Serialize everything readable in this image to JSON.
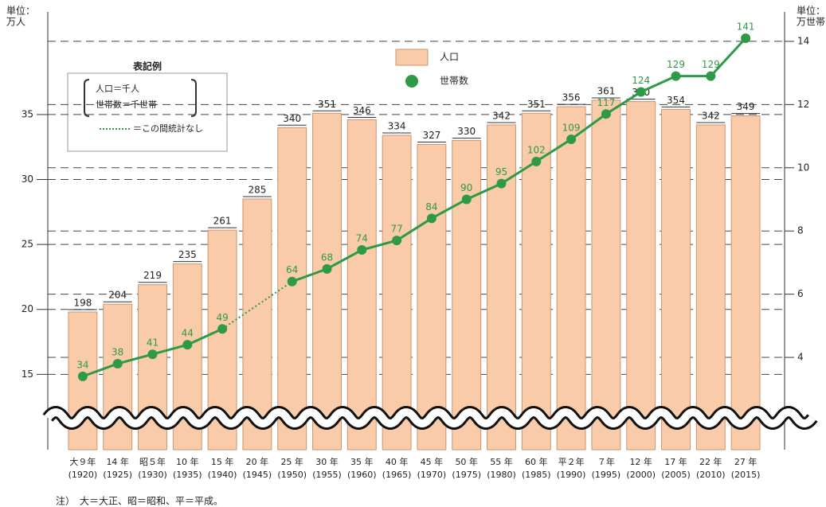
{
  "chart_data": {
    "type": "combo",
    "y_label": [
      "単位：",
      "万人"
    ],
    "y2_label": [
      "単位：",
      "万世帯"
    ],
    "categories": [
      [
        "大９年",
        "(1920)"
      ],
      [
        "14 年",
        "(1925)"
      ],
      [
        "昭５年",
        "(1930)"
      ],
      [
        "10 年",
        "(1935)"
      ],
      [
        "15 年",
        "(1940)"
      ],
      [
        "20 年",
        "(1945)"
      ],
      [
        "25 年",
        "(1950)"
      ],
      [
        "30 年",
        "(1955)"
      ],
      [
        "35 年",
        "(1960)"
      ],
      [
        "40 年",
        "(1965)"
      ],
      [
        "45 年",
        "(1970)"
      ],
      [
        "50 年",
        "(1975)"
      ],
      [
        "55 年",
        "(1980)"
      ],
      [
        "60 年",
        "(1985)"
      ],
      [
        "平２年",
        "(1990)"
      ],
      [
        "７年",
        "(1995)"
      ],
      [
        "12 年",
        "(2000)"
      ],
      [
        "17 年",
        "(2005)"
      ],
      [
        "22 年",
        "(2010)"
      ],
      [
        "27 年",
        "(2015)"
      ]
    ],
    "series": [
      {
        "name": "人口",
        "type": "bar",
        "color": "#f9cba9",
        "values": [
          19.8,
          20.4,
          21.9,
          23.5,
          26.1,
          28.5,
          34.0,
          35.1,
          34.6,
          33.4,
          32.7,
          33.0,
          34.2,
          35.1,
          35.6,
          36.1,
          36.0,
          35.4,
          34.2,
          34.9
        ],
        "value_labels": [
          "198",
          "204",
          "219",
          "235",
          "261",
          "285",
          "340",
          "351",
          "346",
          "334",
          "327",
          "330",
          "342",
          "351",
          "356",
          "361",
          "360",
          "354",
          "342",
          "349"
        ]
      },
      {
        "name": "世帯数",
        "type": "line",
        "axis": "y2",
        "color": "#2e9a48",
        "values": [
          3.4,
          3.8,
          4.1,
          4.4,
          4.9,
          null,
          6.4,
          6.8,
          7.4,
          7.7,
          8.4,
          9.0,
          9.5,
          10.2,
          10.9,
          11.7,
          12.4,
          12.9,
          12.9,
          14.1
        ],
        "value_labels": [
          "34",
          "38",
          "41",
          "44",
          "49",
          null,
          "64",
          "68",
          "74",
          "77",
          "84",
          "90",
          "95",
          "102",
          "109",
          "117",
          "124",
          "129",
          "129",
          "141"
        ]
      }
    ],
    "ylim": [
      9.2,
      42.9
    ],
    "yticks": [
      15,
      20,
      25,
      30,
      35
    ],
    "y2lim": [
      1.08,
      14.93
    ],
    "y2ticks": [
      4,
      6,
      8,
      10,
      12,
      14
    ],
    "grid": true,
    "legend_note": {
      "title": "表記例",
      "lines": [
        "人口＝千人",
        "世帯数＝千世帯"
      ],
      "gap": "＝この間統計なし"
    },
    "footnote": "注）　大＝大正、昭＝昭和、平＝平成。"
  }
}
